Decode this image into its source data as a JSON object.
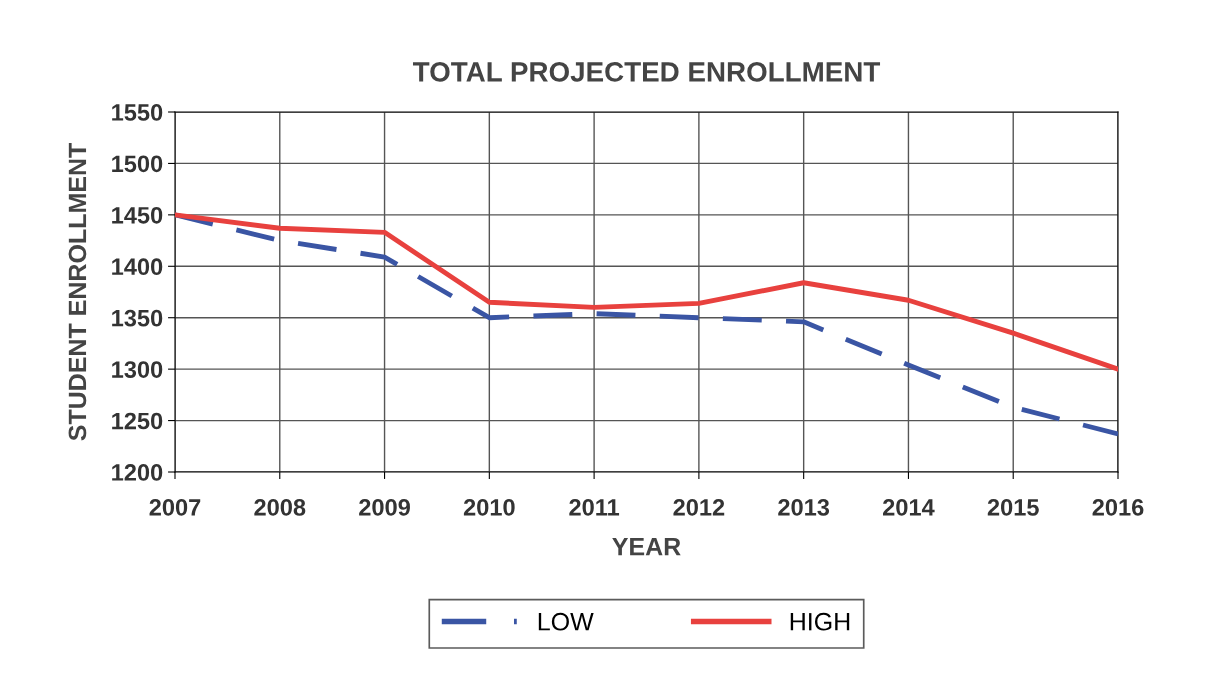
{
  "chart_data": {
    "type": "line",
    "title": "TOTAL PROJECTED ENROLLMENT",
    "xlabel": "YEAR",
    "ylabel": "STUDENT ENROLLMENT",
    "categories": [
      "2007",
      "2008",
      "2009",
      "2010",
      "2011",
      "2012",
      "2013",
      "2014",
      "2015",
      "2016"
    ],
    "series": [
      {
        "name": "LOW",
        "color": "#3a55a4",
        "line_style": "dashed",
        "values": [
          1450,
          1425,
          1409,
          1350,
          1354,
          1350,
          1346,
          1304,
          1263,
          1237
        ]
      },
      {
        "name": "HIGH",
        "color": "#e8413e",
        "line_style": "solid",
        "values": [
          1450,
          1437,
          1433,
          1365,
          1360,
          1364,
          1384,
          1367,
          1335,
          1300
        ]
      }
    ],
    "ylim": [
      1200,
      1550
    ],
    "yticks": [
      1200,
      1250,
      1300,
      1350,
      1400,
      1450,
      1500,
      1550
    ],
    "grid": true,
    "legend": "bottom",
    "marker": "none"
  }
}
